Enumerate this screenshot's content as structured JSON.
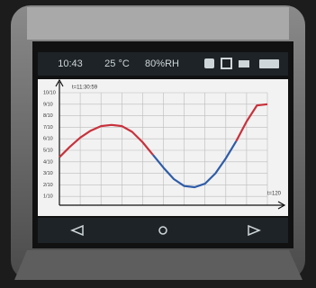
{
  "status_bar": {
    "time": "10:43",
    "temperature": "25 °C",
    "humidity": "80%RH"
  },
  "chart_data": {
    "type": "line",
    "top_label": "t=11:30:59",
    "x_end_label": "t=120",
    "x": [
      0,
      6,
      12,
      18,
      24,
      30,
      36,
      42,
      48,
      54,
      60,
      66,
      72,
      78,
      84,
      90,
      96,
      102,
      108,
      114,
      120
    ],
    "series": [
      {
        "color": "#c8323c",
        "values": [
          4.4,
          5.3,
          6.1,
          6.7,
          7.1,
          7.2,
          7.1,
          6.6,
          5.7,
          4.6,
          null,
          null,
          null,
          null,
          null,
          null,
          null,
          5.8,
          7.5,
          8.9,
          9.0
        ]
      },
      {
        "color": "#2f5ca8",
        "values": [
          null,
          null,
          null,
          null,
          null,
          null,
          null,
          null,
          null,
          4.6,
          3.5,
          2.5,
          1.9,
          1.8,
          2.1,
          3.0,
          4.3,
          5.8,
          null,
          null,
          null
        ]
      }
    ],
    "xlim": [
      0,
      120
    ],
    "ylim": [
      0,
      10
    ],
    "yticks": [
      {
        "value": 1,
        "label": "1/10"
      },
      {
        "value": 2,
        "label": "2/10"
      },
      {
        "value": 3,
        "label": "3/10"
      },
      {
        "value": 4,
        "label": "4/10"
      },
      {
        "value": 5,
        "label": "5/10"
      },
      {
        "value": 6,
        "label": "6/10"
      },
      {
        "value": 7,
        "label": "7/10"
      },
      {
        "value": 8,
        "label": "8/10"
      },
      {
        "value": 9,
        "label": "9/10"
      },
      {
        "value": 10,
        "label": "10/10"
      }
    ],
    "grid": true
  }
}
